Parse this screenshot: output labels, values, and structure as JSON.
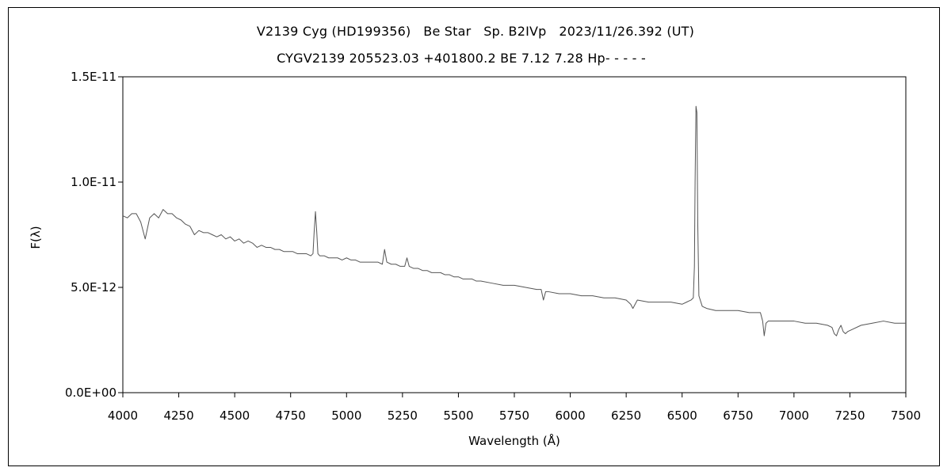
{
  "chart_data": {
    "type": "line",
    "title": "V2139 Cyg (HD199356)   Be Star   Sp. B2IVp   2023/11/26.392 (UT)",
    "subtitle": "CYGV2139 205523.03 +401800.2 BE 7.12 7.28 Hp- - - - -",
    "xlabel": "Wavelength (Å)",
    "ylabel": "F(λ)",
    "xlim": [
      4000,
      7500
    ],
    "ylim": [
      0,
      1.5e-11
    ],
    "x_ticks": [
      4000,
      4250,
      4500,
      4750,
      5000,
      5250,
      5500,
      5750,
      6000,
      6250,
      6500,
      6750,
      7000,
      7250,
      7500
    ],
    "x_tick_labels": [
      "4000",
      "4250",
      "4500",
      "4750",
      "5000",
      "5250",
      "5500",
      "5750",
      "6000",
      "6250",
      "6500",
      "6750",
      "7000",
      "7250",
      "7500"
    ],
    "y_ticks": [
      0,
      5e-12,
      1e-11,
      1.5e-11
    ],
    "y_tick_labels": [
      "0.0E+00",
      "5.0E-12",
      "1.0E-11",
      "1.5E-11"
    ],
    "grid": false,
    "line_color": "#555555",
    "series": [
      {
        "name": "",
        "x": [
          4000,
          4020,
          4040,
          4060,
          4080,
          4100,
          4110,
          4120,
          4140,
          4160,
          4180,
          4200,
          4220,
          4240,
          4260,
          4280,
          4300,
          4320,
          4340,
          4360,
          4380,
          4400,
          4420,
          4440,
          4460,
          4480,
          4500,
          4520,
          4540,
          4560,
          4580,
          4600,
          4620,
          4640,
          4660,
          4680,
          4700,
          4720,
          4740,
          4760,
          4780,
          4800,
          4820,
          4840,
          4850,
          4855,
          4861,
          4867,
          4872,
          4880,
          4900,
          4920,
          4940,
          4960,
          4980,
          5000,
          5020,
          5040,
          5060,
          5080,
          5100,
          5120,
          5140,
          5160,
          5170,
          5180,
          5200,
          5220,
          5240,
          5260,
          5270,
          5280,
          5300,
          5320,
          5340,
          5360,
          5380,
          5400,
          5420,
          5440,
          5460,
          5480,
          5500,
          5520,
          5540,
          5560,
          5580,
          5600,
          5650,
          5700,
          5750,
          5800,
          5850,
          5870,
          5880,
          5890,
          5900,
          5950,
          6000,
          6050,
          6100,
          6150,
          6200,
          6250,
          6270,
          6280,
          6300,
          6350,
          6400,
          6450,
          6500,
          6520,
          6540,
          6550,
          6555,
          6558,
          6562,
          6566,
          6570,
          6575,
          6590,
          6610,
          6650,
          6700,
          6750,
          6800,
          6850,
          6860,
          6867,
          6875,
          6885,
          6900,
          6950,
          7000,
          7050,
          7100,
          7150,
          7170,
          7180,
          7190,
          7200,
          7210,
          7220,
          7230,
          7240,
          7260,
          7300,
          7350,
          7400,
          7450,
          7500
        ],
        "y": [
          8.4e-12,
          8.3e-12,
          8.5e-12,
          8.5e-12,
          8.1e-12,
          7.3e-12,
          7.8e-12,
          8.3e-12,
          8.5e-12,
          8.3e-12,
          8.7e-12,
          8.5e-12,
          8.5e-12,
          8.3e-12,
          8.2e-12,
          8e-12,
          7.9e-12,
          7.5e-12,
          7.7e-12,
          7.6e-12,
          7.6e-12,
          7.5e-12,
          7.4e-12,
          7.5e-12,
          7.3e-12,
          7.4e-12,
          7.2e-12,
          7.3e-12,
          7.1e-12,
          7.2e-12,
          7.1e-12,
          6.9e-12,
          7e-12,
          6.9e-12,
          6.9e-12,
          6.8e-12,
          6.8e-12,
          6.7e-12,
          6.7e-12,
          6.7e-12,
          6.6e-12,
          6.6e-12,
          6.6e-12,
          6.5e-12,
          6.6e-12,
          7.6e-12,
          8.6e-12,
          7.6e-12,
          6.6e-12,
          6.5e-12,
          6.5e-12,
          6.4e-12,
          6.4e-12,
          6.4e-12,
          6.3e-12,
          6.4e-12,
          6.3e-12,
          6.3e-12,
          6.2e-12,
          6.2e-12,
          6.2e-12,
          6.2e-12,
          6.2e-12,
          6.1e-12,
          6.8e-12,
          6.2e-12,
          6.1e-12,
          6.1e-12,
          6e-12,
          6e-12,
          6.4e-12,
          6e-12,
          5.9e-12,
          5.9e-12,
          5.8e-12,
          5.8e-12,
          5.7e-12,
          5.7e-12,
          5.7e-12,
          5.6e-12,
          5.6e-12,
          5.5e-12,
          5.5e-12,
          5.4e-12,
          5.4e-12,
          5.4e-12,
          5.3e-12,
          5.3e-12,
          5.2e-12,
          5.1e-12,
          5.1e-12,
          5e-12,
          4.9e-12,
          4.9e-12,
          4.4e-12,
          4.8e-12,
          4.8e-12,
          4.7e-12,
          4.7e-12,
          4.6e-12,
          4.6e-12,
          4.5e-12,
          4.5e-12,
          4.4e-12,
          4.2e-12,
          4e-12,
          4.4e-12,
          4.3e-12,
          4.3e-12,
          4.3e-12,
          4.2e-12,
          4.3e-12,
          4.4e-12,
          4.5e-12,
          6e-12,
          1e-11,
          1.36e-11,
          1.33e-11,
          8e-12,
          4.6e-12,
          4.1e-12,
          4e-12,
          3.9e-12,
          3.9e-12,
          3.9e-12,
          3.8e-12,
          3.8e-12,
          3.4e-12,
          2.7e-12,
          3.3e-12,
          3.4e-12,
          3.4e-12,
          3.4e-12,
          3.4e-12,
          3.3e-12,
          3.3e-12,
          3.2e-12,
          3.1e-12,
          2.8e-12,
          2.7e-12,
          3e-12,
          3.2e-12,
          2.9e-12,
          2.8e-12,
          2.9e-12,
          3e-12,
          3.2e-12,
          3.3e-12,
          3.4e-12,
          3.3e-12,
          3.3e-12
        ]
      }
    ]
  }
}
